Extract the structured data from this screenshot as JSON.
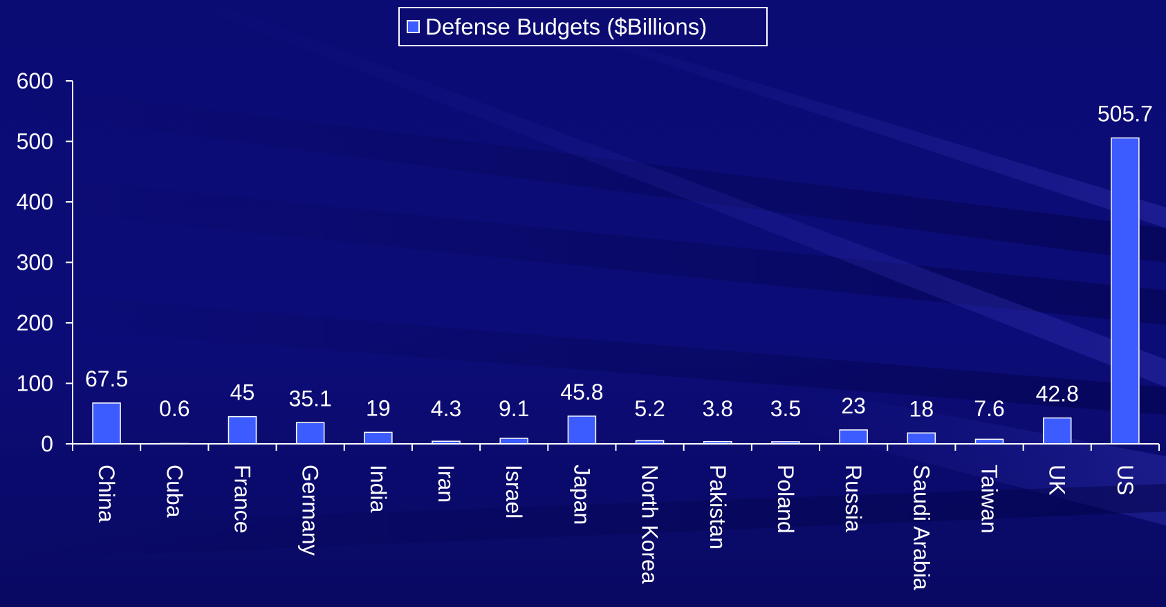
{
  "chart_data": {
    "type": "bar",
    "categories": [
      "China",
      "Cuba",
      "France",
      "Germany",
      "India",
      "Iran",
      "Israel",
      "Japan",
      "North Korea",
      "Pakistan",
      "Poland",
      "Russia",
      "Saudi Arabia",
      "Taiwan",
      "UK",
      "US"
    ],
    "series": [
      {
        "name": "Defense Budgets ($Billions)",
        "values": [
          67.5,
          0.6,
          45,
          35.1,
          19,
          4.3,
          9.1,
          45.8,
          5.2,
          3.8,
          3.5,
          23,
          18,
          7.6,
          42.8,
          505.7
        ]
      }
    ],
    "data_labels": [
      "67.5",
      "0.6",
      "45",
      "35.1",
      "19",
      "4.3",
      "9.1",
      "45.8",
      "5.2",
      "3.8",
      "3.5",
      "23",
      "18",
      "7.6",
      "42.8",
      "505.7"
    ],
    "yticks": [
      "0",
      "100",
      "200",
      "300",
      "400",
      "500",
      "600"
    ],
    "ylim": [
      0,
      600
    ],
    "title": "",
    "xlabel": "",
    "ylabel": "",
    "legend_position": "top-center",
    "grid": false
  },
  "colors": {
    "bar": "#3d5cff",
    "bar_border": "#ffffff",
    "text": "#ffffff",
    "axis": "#ffffff",
    "background": "#0b0b74"
  }
}
